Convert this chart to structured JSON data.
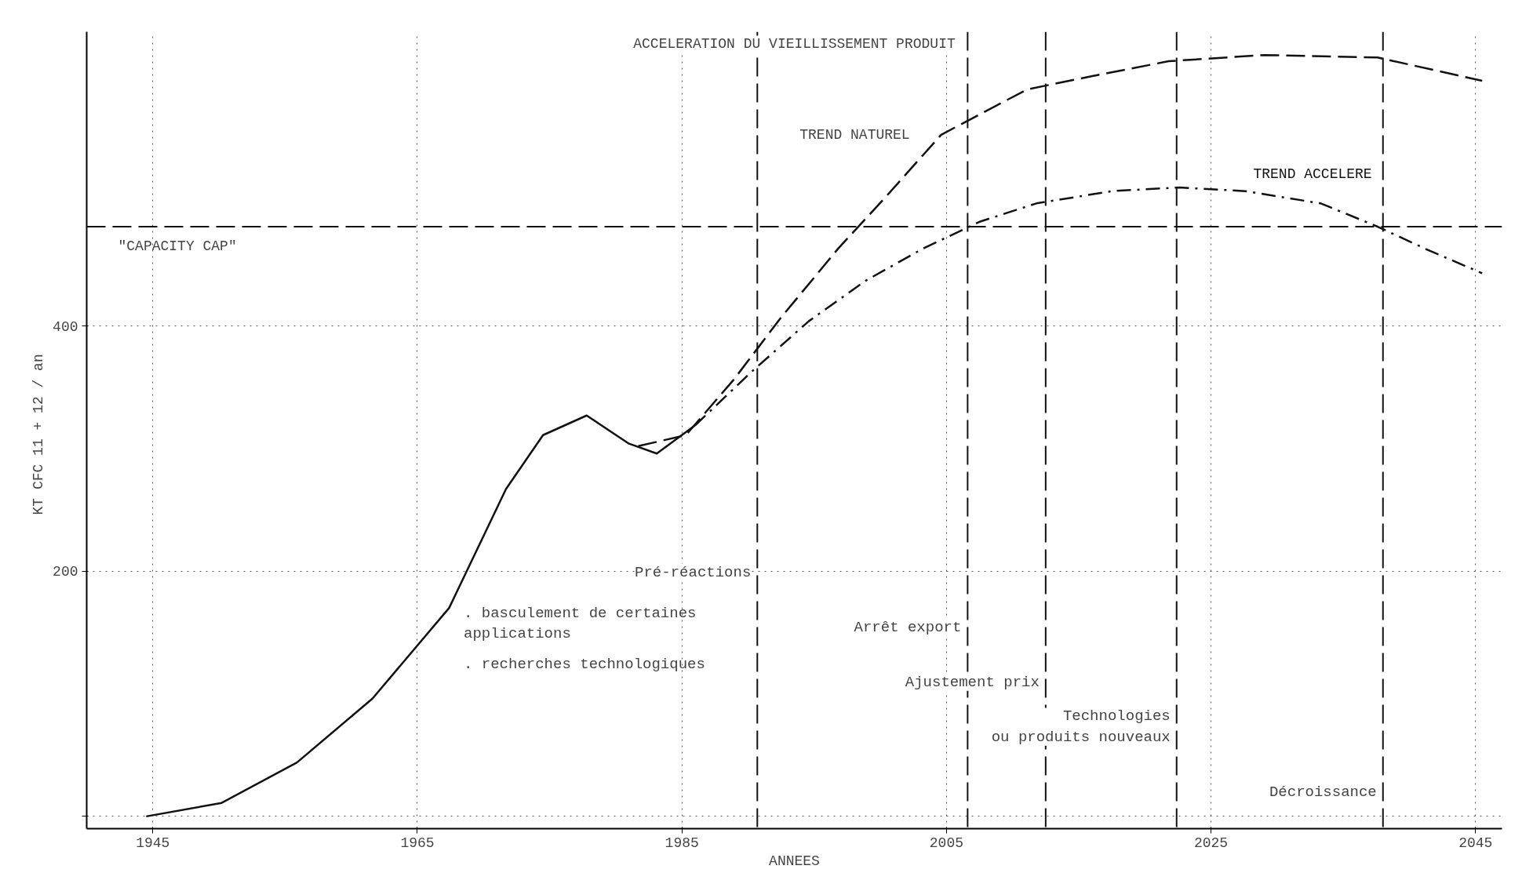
{
  "chart_data": {
    "type": "line",
    "ylabel": "KT  CFC 11 + 12 / an",
    "xlabel": "ANNEES",
    "xlim": [
      1940,
      2047
    ],
    "ylim": [
      -10,
      640
    ],
    "xticks": [
      1945,
      1965,
      1985,
      2005,
      2025,
      2045
    ],
    "yticks": [
      {
        "value": 0,
        "label": null
      },
      200,
      400
    ],
    "grid": true,
    "series": [
      {
        "color": "#111111",
        "line_style": "solid",
        "x": [
          1944.5,
          1950.2,
          1955.9,
          1961.6,
          1967.4,
          1971.7,
          1974.5,
          1977.8,
          1981,
          1983.1,
          1986
        ],
        "values": [
          0,
          11,
          44,
          96,
          170,
          267,
          311,
          327,
          304,
          296,
          319
        ]
      },
      {
        "name": "TREND NATUREL",
        "color": "#111111",
        "line_style": "dashed",
        "x": [
          1981.7,
          1985.3,
          1988.9,
          1992.5,
          1996.8,
          2000.3,
          2004.6,
          2011.1,
          2016.1,
          2021.8,
          2029,
          2037.6,
          2045.5
        ],
        "values": [
          302,
          311,
          356,
          407,
          463,
          504,
          556,
          593,
          604,
          616,
          621,
          619,
          600
        ]
      },
      {
        "name": "TREND ACCELERE",
        "color": "#111111",
        "line_style": "dashdot",
        "x": [
          1986,
          1990.3,
          1994.6,
          1998.9,
          2003.2,
          2007.5,
          2011.8,
          2017.5,
          2022.6,
          2027.6,
          2033.3,
          2037.6,
          2041.2,
          2045.5
        ],
        "values": [
          319,
          363,
          404,
          437,
          463,
          485,
          500,
          510,
          513,
          510,
          500,
          481,
          463,
          443
        ]
      }
    ],
    "ref_lines": [
      {
        "axis": "y",
        "value": 481,
        "label": "\"CAPACITY CAP\"",
        "line_style": "dashed"
      },
      {
        "axis": "x",
        "value": 1990.7,
        "label": "Pré-réactions",
        "line_style": "dashed"
      },
      {
        "axis": "x",
        "value": 2006.6,
        "label": "Arrêt export",
        "line_style": "dashed"
      },
      {
        "axis": "x",
        "value": 2012.5,
        "label": "Ajustement prix",
        "line_style": "dashed"
      },
      {
        "axis": "x",
        "value": 2022.4,
        "label": "Technologies\nou produits nouveaux",
        "line_style": "dashed"
      },
      {
        "axis": "x",
        "value": 2038,
        "label": "Décroissance",
        "line_style": "dashed"
      }
    ],
    "annotations": [
      "ACCELERATION DU VIEILLISSEMENT PRODUIT",
      ". basculement de certaines\n  applications",
      ". recherches technologiques"
    ]
  }
}
